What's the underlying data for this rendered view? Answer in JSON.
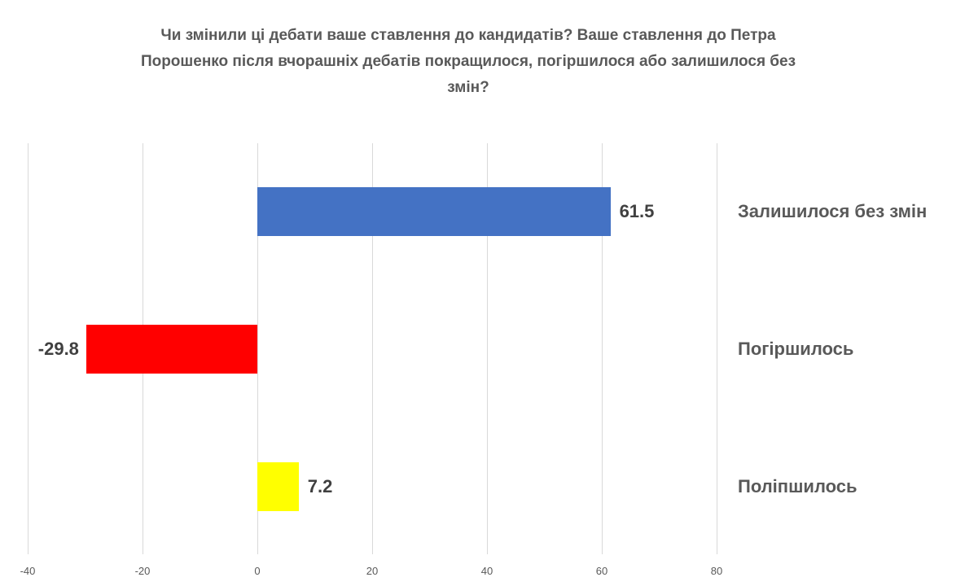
{
  "chart_data": {
    "type": "bar",
    "orientation": "horizontal",
    "title": "Чи змінили ці дебати ваше ставлення до кандидатів? Ваше ставлення до Петра Порошенко після вчорашніх дебатів покращилося, погіршилося або залишилося без змін?",
    "title_lines": [
      "Чи змінили ці дебати ваше ставлення до кандидатів? Ваше ставлення до Петра",
      "Порошенко після вчорашніх дебатів покращилося, погіршилося або залишилося без",
      "змін?"
    ],
    "categories": [
      "Залишилося без змін",
      "Погіршилось",
      "Поліпшилось"
    ],
    "values": [
      61.5,
      -29.8,
      7.2
    ],
    "value_labels": [
      "61.5",
      "-29.8",
      "7.2"
    ],
    "colors": [
      "#4472C4",
      "#FF0000",
      "#FFFF00"
    ],
    "xlabel": "",
    "ylabel": "",
    "xlim": [
      -40,
      80
    ],
    "x_ticks": [
      "-40",
      "-20",
      "0",
      "20",
      "40",
      "60",
      "80"
    ],
    "grid": true,
    "legend": null
  }
}
